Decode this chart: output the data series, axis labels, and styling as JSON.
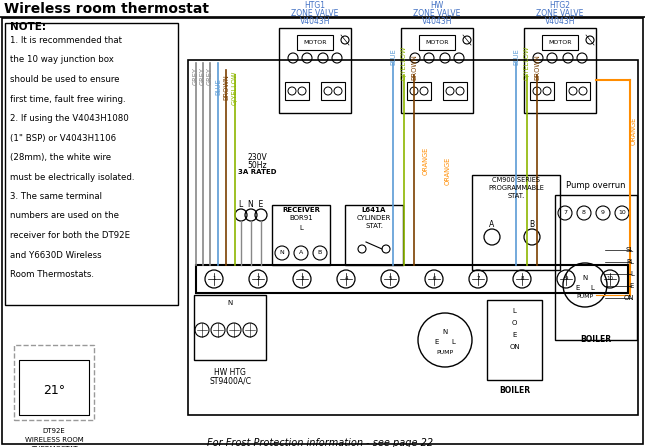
{
  "title": "Wireless room thermostat",
  "bg_color": "#ffffff",
  "note_lines": [
    "NOTE:",
    "1. It is recommended that",
    "the 10 way junction box",
    "should be used to ensure",
    "first time, fault free wiring.",
    "2. If using the V4043H1080",
    "(1\" BSP) or V4043H1106",
    "(28mm), the white wire",
    "must be electrically isolated.",
    "3. The same terminal",
    "numbers are used on the",
    "receiver for both the DT92E",
    "and Y6630D Wireless",
    "Room Thermostats."
  ],
  "valve1_label": [
    "V4043H",
    "ZONE VALVE",
    "HTG1"
  ],
  "valve2_label": [
    "V4043H",
    "ZONE VALVE",
    "HW"
  ],
  "valve3_label": [
    "V4043H",
    "ZONE VALVE",
    "HTG2"
  ],
  "footer_text": "For Frost Protection information - see page 22",
  "dt92e_lines": [
    "DT92E",
    "WIRELESS ROOM",
    "THERMOSTAT"
  ],
  "wire_grey": "#888888",
  "wire_blue": "#5b9bd5",
  "wire_brown": "#7B3F00",
  "wire_gy": "#8db600",
  "wire_orange": "#FF8C00",
  "col_blue_label": "#4472c4",
  "col_orange_label": "#c55a11"
}
